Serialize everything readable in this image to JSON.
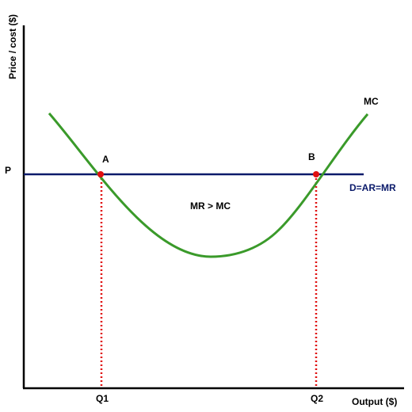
{
  "axes": {
    "y_label": "Price / cost ($)",
    "x_label": "Output ($)",
    "x_ticks": [
      "Q1",
      "Q2"
    ],
    "y_ticks": [
      "P"
    ]
  },
  "curves": {
    "mc_label": "MC",
    "demand_label": "D=AR=MR"
  },
  "points": {
    "a_label": "A",
    "b_label": "B"
  },
  "annotation": "MR > MC",
  "colors": {
    "mc_curve": "#3a9a2a",
    "demand_line": "#0a1a6a",
    "points": "#e01010",
    "guides": "#e01010",
    "axes": "#000000",
    "demand_label": "#0a1a6a"
  }
}
